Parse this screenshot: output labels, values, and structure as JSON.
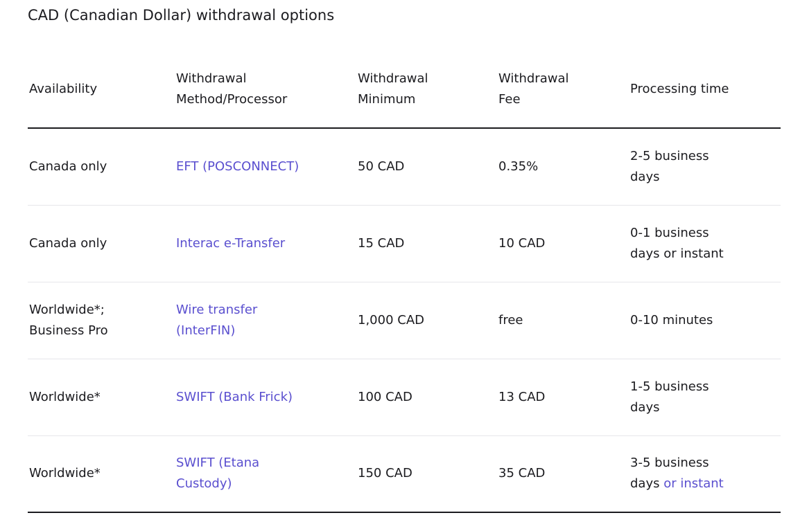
{
  "page": {
    "title": "CAD (Canadian Dollar) withdrawal options"
  },
  "colors": {
    "link": "#5a4fcf",
    "text": "#1b1b1f",
    "row_divider": "#e6e6ea"
  },
  "table": {
    "headers": {
      "availability": "Availability",
      "method_line1": "Withdrawal",
      "method_line2": "Method/Processor",
      "minimum_line1": "Withdrawal",
      "minimum_line2": "Minimum",
      "fee_line1": "Withdrawal",
      "fee_line2": "Fee",
      "processing": "Processing time"
    },
    "rows": [
      {
        "availability_line1": "Canada only",
        "availability_line2": "",
        "method_line1": "EFT (POSCONNECT)",
        "method_line2": "",
        "minimum": "50 CAD",
        "fee": "0.35%",
        "processing_line1": "2-5 business",
        "processing_line2": "days",
        "processing_link": ""
      },
      {
        "availability_line1": "Canada only",
        "availability_line2": "",
        "method_line1": "Interac e-Transfer",
        "method_line2": "",
        "minimum": "15 CAD",
        "fee": "10 CAD",
        "processing_line1": "0-1 business",
        "processing_line2": "days or instant",
        "processing_link": ""
      },
      {
        "availability_line1": "Worldwide*;",
        "availability_line2": "Business Pro",
        "method_line1": "Wire transfer",
        "method_line2": "(InterFIN)",
        "minimum": "1,000 CAD",
        "fee": "free",
        "processing_line1": "0-10 minutes",
        "processing_line2": "",
        "processing_link": ""
      },
      {
        "availability_line1": "Worldwide*",
        "availability_line2": "",
        "method_line1": "SWIFT (Bank Frick)",
        "method_line2": "",
        "minimum": "100 CAD",
        "fee": "13 CAD",
        "processing_line1": "1-5 business",
        "processing_line2": "days",
        "processing_link": ""
      },
      {
        "availability_line1": "Worldwide*",
        "availability_line2": "",
        "method_line1": "SWIFT (Etana",
        "method_line2": "Custody)",
        "minimum": "150 CAD",
        "fee": "35 CAD",
        "processing_line1": "3-5 business",
        "processing_line2": "days ",
        "processing_link": "or instant"
      }
    ]
  }
}
